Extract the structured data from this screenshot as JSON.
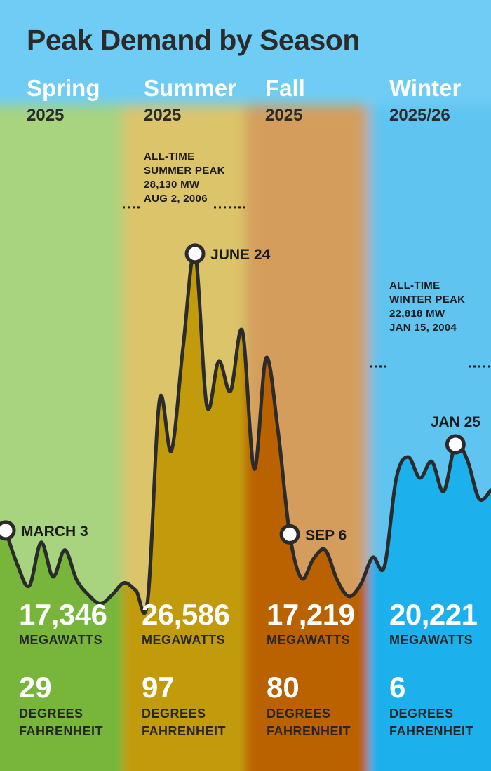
{
  "chart_data": {
    "type": "area",
    "title": "Peak Demand by Season",
    "seasons": [
      {
        "name": "Spring",
        "year": "2025",
        "peak_megawatts": "17,346",
        "megawatts_label": "MEGAWATTS",
        "temperature": "29",
        "temperature_label_1": "DEGREES",
        "temperature_label_2": "FAHRENHEIT",
        "peak_date": "MARCH 3",
        "bg_color": "#a8d37f",
        "fill_color": "#78b63a"
      },
      {
        "name": "Summer",
        "year": "2025",
        "peak_megawatts": "26,586",
        "megawatts_label": "MEGAWATTS",
        "temperature": "97",
        "temperature_label_1": "DEGREES",
        "temperature_label_2": "FAHRENHEIT",
        "peak_date": "JUNE 24",
        "bg_color": "#dcc46a",
        "fill_color": "#c29b0a"
      },
      {
        "name": "Fall",
        "year": "2025",
        "peak_megawatts": "17,219",
        "megawatts_label": "MEGAWATTS",
        "temperature": "80",
        "temperature_label_1": "DEGREES",
        "temperature_label_2": "FAHRENHEIT",
        "peak_date": "SEP 6",
        "bg_color": "#d49d5c",
        "fill_color": "#bb6202"
      },
      {
        "name": "Winter",
        "year": "2025/26",
        "peak_megawatts": "20,221",
        "megawatts_label": "MEGAWATTS",
        "temperature": "6",
        "temperature_label_1": "DEGREES",
        "temperature_label_2": "FAHRENHEIT",
        "peak_date": "JAN 25",
        "bg_color": "#5fc4f0",
        "fill_color": "#1eb1ed"
      }
    ],
    "records": [
      {
        "lines": [
          "ALL-TIME",
          "SUMMER PEAK",
          "28,130 MW",
          "AUG 2, 2006"
        ],
        "value": 28130
      },
      {
        "lines": [
          "ALL-TIME",
          "WINTER PEAK",
          "22,818 MW",
          "JAN 15, 2004"
        ],
        "value": 22818
      }
    ],
    "series": [
      {
        "values": [
          17346,
          16200,
          15500,
          16950,
          15800,
          16700,
          15700,
          15200,
          14900,
          15200,
          15600,
          15350,
          15000,
          21700,
          20000,
          23500,
          26586,
          21500,
          23000,
          22000,
          24000,
          19400,
          23100,
          20700,
          17219,
          15750,
          16400,
          16700,
          15700,
          15150,
          15550,
          16450,
          16150,
          19100,
          19800,
          19100,
          19650,
          18650,
          20221,
          19700,
          18400,
          18700
        ]
      }
    ],
    "peak_values": [
      17346,
      26586,
      17219,
      20221
    ],
    "ylim": [
      14000,
      28500
    ],
    "grid": false
  }
}
